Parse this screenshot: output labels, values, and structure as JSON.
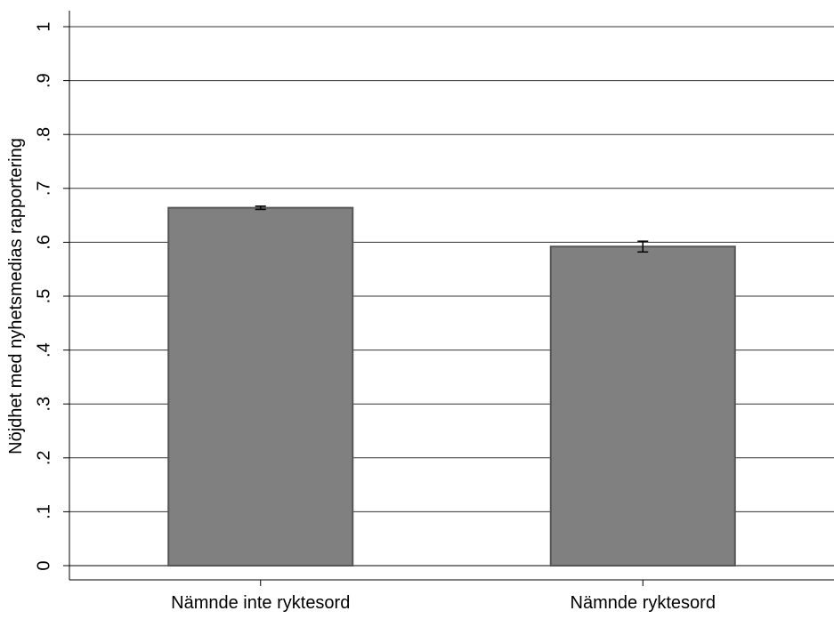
{
  "chart_data": {
    "type": "bar",
    "title": "",
    "xlabel": "",
    "ylabel": "Nöjdhet med nyhetsmedias rapportering",
    "categories": [
      "Nämnde inte ryktesord",
      "Nämnde ryktesord"
    ],
    "values": [
      0.664,
      0.592
    ],
    "error_bars": [
      {
        "low": 0.661,
        "high": 0.667
      },
      {
        "low": 0.582,
        "high": 0.602
      }
    ],
    "ylim": [
      0,
      1
    ],
    "yticks": [
      0,
      0.1,
      0.2,
      0.3,
      0.4,
      0.5,
      0.6,
      0.7,
      0.8,
      0.9,
      1
    ],
    "ytick_labels": [
      "0",
      ".1",
      ".2",
      ".3",
      ".4",
      ".5",
      ".6",
      ".7",
      ".8",
      ".9",
      "1"
    ],
    "grid": true,
    "bar_color": "#808080",
    "bar_edge_color": "#555555"
  }
}
